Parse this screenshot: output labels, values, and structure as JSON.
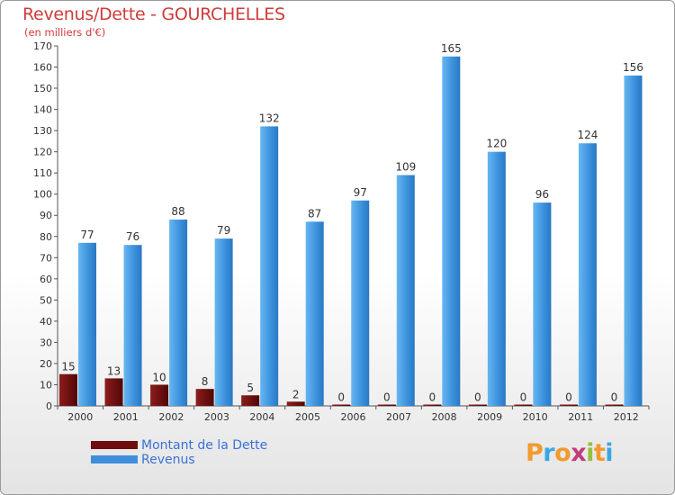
{
  "title": "Revenus/Dette - GOURCHELLES",
  "subtitle": "(en milliers d'€)",
  "logo": {
    "letters": [
      {
        "ch": "P",
        "color": "#f29a2e"
      },
      {
        "ch": "r",
        "color": "#3ba6e3"
      },
      {
        "ch": "o",
        "color": "#f29a2e"
      },
      {
        "ch": "x",
        "color": "#c23b7c"
      },
      {
        "ch": "i",
        "color": "#93c13d"
      },
      {
        "ch": "t",
        "color": "#f29a2e"
      },
      {
        "ch": "i",
        "color": "#3ba6e3"
      }
    ]
  },
  "legend": [
    {
      "label": "Montant de la Dette",
      "color": "#6e0e0e"
    },
    {
      "label": "Revenus",
      "color": "#3d8fdb"
    }
  ],
  "chart_data": {
    "type": "bar",
    "title": "Revenus/Dette - GOURCHELLES",
    "subtitle": "(en milliers d'€)",
    "categories": [
      "2000",
      "2001",
      "2002",
      "2003",
      "2004",
      "2005",
      "2006",
      "2007",
      "2008",
      "2009",
      "2010",
      "2011",
      "2012"
    ],
    "series": [
      {
        "name": "Montant de la Dette",
        "color": "#6e0e0e",
        "values": [
          15,
          13,
          10,
          8,
          5,
          2,
          0,
          0,
          0,
          0,
          0,
          0,
          0
        ]
      },
      {
        "name": "Revenus",
        "color": "#3d8fdb",
        "values": [
          77,
          76,
          88,
          79,
          132,
          87,
          97,
          109,
          165,
          120,
          96,
          124,
          156
        ]
      }
    ],
    "ylim": [
      0,
      170
    ],
    "yticks": [
      0,
      10,
      20,
      30,
      40,
      50,
      60,
      70,
      80,
      90,
      100,
      110,
      120,
      130,
      140,
      150,
      160,
      170
    ],
    "grid": false,
    "legend_position": "bottom-left"
  }
}
